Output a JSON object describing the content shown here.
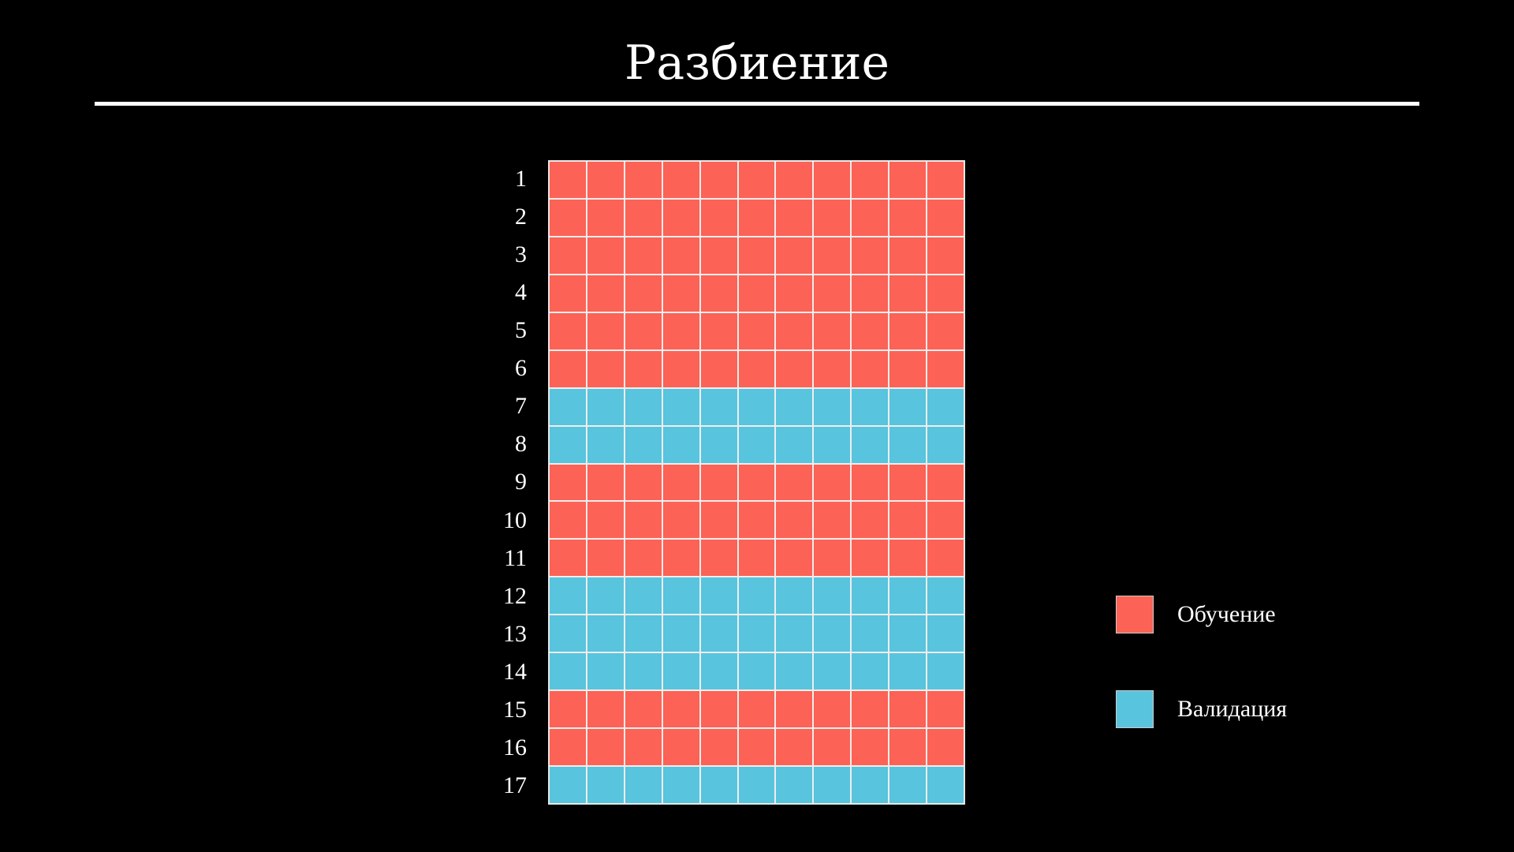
{
  "title": "Разбиение",
  "colors": {
    "train": "#FC6255",
    "validation": "#58C4DD",
    "background": "#000000",
    "grid_lines": "#EEEEEE"
  },
  "grid": {
    "columns": 11,
    "rows": [
      {
        "label": "1",
        "split": "train"
      },
      {
        "label": "2",
        "split": "train"
      },
      {
        "label": "3",
        "split": "train"
      },
      {
        "label": "4",
        "split": "train"
      },
      {
        "label": "5",
        "split": "train"
      },
      {
        "label": "6",
        "split": "train"
      },
      {
        "label": "7",
        "split": "validation"
      },
      {
        "label": "8",
        "split": "validation"
      },
      {
        "label": "9",
        "split": "train"
      },
      {
        "label": "10",
        "split": "train"
      },
      {
        "label": "11",
        "split": "train"
      },
      {
        "label": "12",
        "split": "validation"
      },
      {
        "label": "13",
        "split": "validation"
      },
      {
        "label": "14",
        "split": "validation"
      },
      {
        "label": "15",
        "split": "train"
      },
      {
        "label": "16",
        "split": "train"
      },
      {
        "label": "17",
        "split": "validation"
      }
    ]
  },
  "legend": [
    {
      "key": "train",
      "label": "Обучение"
    },
    {
      "key": "validation",
      "label": "Валидация"
    }
  ]
}
